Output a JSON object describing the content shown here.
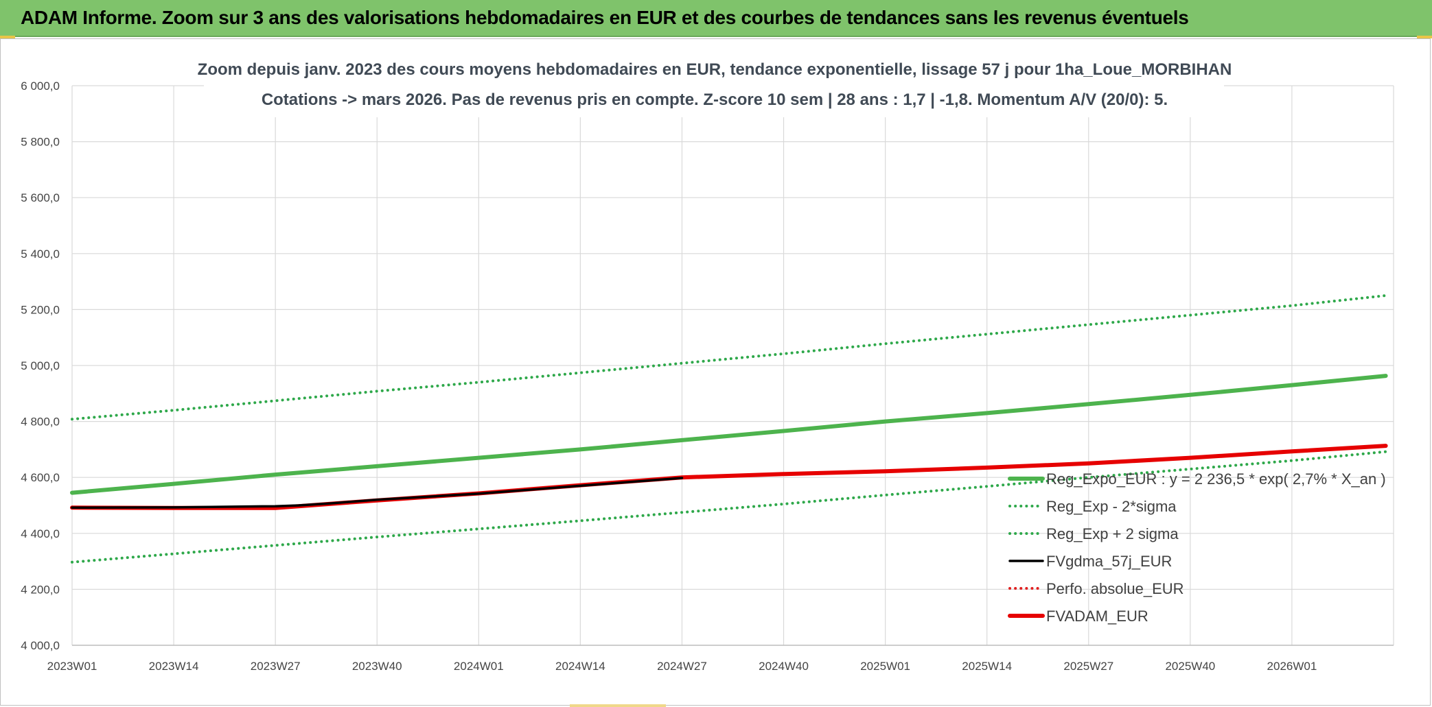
{
  "header": {
    "title": "ADAM Informe. Zoom sur 3 ans des valorisations hebdomadaires en EUR et des courbes de tendances sans les revenus éventuels"
  },
  "colors": {
    "banner": "#7fc36b",
    "reg_expo": "#4db34d",
    "sigma_bands": "#2ea84a",
    "fvgdma": "#000000",
    "perfo": "#e02020",
    "fvadam": "#e60000",
    "grid": "#d9d9d9"
  },
  "chart_data": {
    "type": "line",
    "title": [
      "Zoom depuis janv. 2023 des cours moyens hebdomadaires en EUR, tendance exponentielle, lissage 57 j pour 1ha_Loue_MORBIHAN",
      "Cotations -> mars 2026. Pas de revenus pris en compte. Z-score 10 sem | 28 ans : 1,7 | -1,8. Momentum A/V (20/0): 5."
    ],
    "xlabel": "",
    "ylabel": "",
    "x_ticks": [
      "2023W01",
      "2023W14",
      "2023W27",
      "2023W40",
      "2024W01",
      "2024W14",
      "2024W27",
      "2024W40",
      "2025W01",
      "2025W14",
      "2025W27",
      "2025W40",
      "2026W01"
    ],
    "x_range_weeks": [
      0,
      169
    ],
    "y_ticks": [
      "4 000,0",
      "4 200,0",
      "4 400,0",
      "4 600,0",
      "4 800,0",
      "5 000,0",
      "5 200,0",
      "5 400,0",
      "5 600,0",
      "5 800,0",
      "6 000,0"
    ],
    "ylim": [
      4000,
      6000
    ],
    "grid": true,
    "legend_position": "right-inside",
    "series": [
      {
        "name": "Reg_Expo_EUR : y = 2 236,5 * exp( 2,7% * X_an )",
        "style": "solid-thick",
        "color": "#4db34d",
        "x": [
          "2023W01",
          "2023W14",
          "2023W27",
          "2023W40",
          "2024W01",
          "2024W14",
          "2024W27",
          "2024W40",
          "2025W01",
          "2025W14",
          "2025W27",
          "2025W40",
          "2026W01",
          "2026W13"
        ],
        "values": [
          4545,
          4577,
          4610,
          4640,
          4670,
          4700,
          4733,
          4766,
          4800,
          4830,
          4862,
          4895,
          4930,
          4963
        ]
      },
      {
        "name": "Reg_Exp - 2*sigma",
        "style": "dotted",
        "color": "#2ea84a",
        "x": [
          "2023W01",
          "2023W14",
          "2023W27",
          "2023W40",
          "2024W01",
          "2024W14",
          "2024W27",
          "2024W40",
          "2025W01",
          "2025W14",
          "2025W27",
          "2025W40",
          "2026W01",
          "2026W13"
        ],
        "values": [
          4297,
          4327,
          4357,
          4387,
          4416,
          4445,
          4475,
          4505,
          4537,
          4568,
          4600,
          4630,
          4660,
          4692
        ]
      },
      {
        "name": "Reg_Exp + 2 sigma",
        "style": "dotted",
        "color": "#2ea84a",
        "x": [
          "2023W01",
          "2023W14",
          "2023W27",
          "2023W40",
          "2024W01",
          "2024W14",
          "2024W27",
          "2024W40",
          "2025W01",
          "2025W14",
          "2025W27",
          "2025W40",
          "2026W01",
          "2026W13"
        ],
        "values": [
          4808,
          4840,
          4874,
          4908,
          4940,
          4974,
          5008,
          5042,
          5078,
          5112,
          5146,
          5180,
          5214,
          5250
        ]
      },
      {
        "name": "FVgdma_57j_EUR",
        "style": "solid",
        "color": "#000000",
        "x": [
          "2023W01",
          "2023W14",
          "2023W27",
          "2023W30",
          "2023W34",
          "2023W40",
          "2024W01",
          "2024W14",
          "2024W27"
        ],
        "values": [
          4492,
          4493,
          4497,
          4500,
          4507,
          4520,
          4542,
          4570,
          4598
        ]
      },
      {
        "name": "Perfo. absolue_EUR",
        "style": "dotted",
        "color": "#e02020",
        "x": [
          "2023W01",
          "2023W14",
          "2023W27",
          "2023W40",
          "2024W01",
          "2024W14",
          "2024W27",
          "2024W40",
          "2025W01",
          "2025W14",
          "2025W27",
          "2025W40",
          "2026W01",
          "2026W13"
        ],
        "values": [
          4492,
          4491,
          4491,
          4518,
          4543,
          4572,
          4600,
          4612,
          4622,
          4635,
          4650,
          4670,
          4693,
          4713
        ]
      },
      {
        "name": "FVADAM_EUR",
        "style": "solid-thick",
        "color": "#e60000",
        "x": [
          "2023W01",
          "2023W14",
          "2023W27",
          "2023W40",
          "2024W01",
          "2024W14",
          "2024W27",
          "2024W40",
          "2025W01",
          "2025W14",
          "2025W27",
          "2025W40",
          "2026W01",
          "2026W13"
        ],
        "values": [
          4492,
          4491,
          4491,
          4518,
          4543,
          4572,
          4600,
          4612,
          4622,
          4635,
          4650,
          4670,
          4693,
          4713
        ]
      }
    ]
  }
}
